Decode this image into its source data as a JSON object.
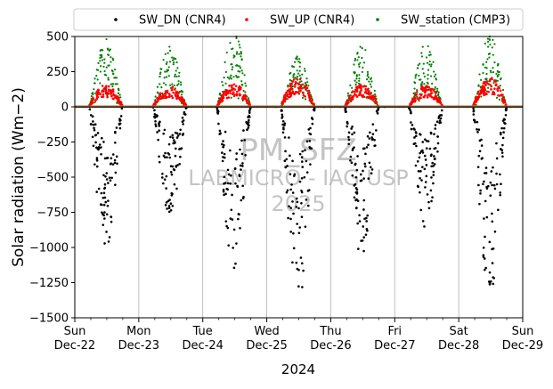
{
  "chart_data": {
    "type": "scatter",
    "xlabel": "2024",
    "ylabel": "Solar radiation (Wm−2)",
    "ylim": [
      -1500,
      500
    ],
    "yticks": [
      -1500,
      -1250,
      -1000,
      -750,
      -500,
      -250,
      0,
      250,
      500
    ],
    "xlim": [
      "2024-12-22",
      "2024-12-29"
    ],
    "xtick_labels": [
      {
        "day": "Sun",
        "date": "Dec-22"
      },
      {
        "day": "Mon",
        "date": "Dec-23"
      },
      {
        "day": "Tue",
        "date": "Dec-24"
      },
      {
        "day": "Wed",
        "date": "Dec-25"
      },
      {
        "day": "Thu",
        "date": "Dec-26"
      },
      {
        "day": "Fri",
        "date": "Dec-27"
      },
      {
        "day": "Sat",
        "date": "Dec-28"
      },
      {
        "day": "Sun",
        "date": "Dec-29"
      }
    ],
    "grid": "vertical",
    "legend_position": "top",
    "series": [
      {
        "name": "SW_DN (CNR4)",
        "color": "#000000",
        "daily_peak": [
          -910,
          -710,
          -1050,
          -1310,
          -980,
          -800,
          -1220
        ]
      },
      {
        "name": "SW_UP (CNR4)",
        "color": "#ff0000",
        "daily_peak": [
          150,
          140,
          160,
          200,
          160,
          150,
          200
        ]
      },
      {
        "name": "SW_station (CMP3)",
        "color": "#008000",
        "daily_peak": [
          440,
          420,
          490,
          330,
          410,
          410,
          490
        ]
      }
    ],
    "watermark": [
      "PM_SFZ",
      "LABMICRO - IAG USP",
      "2025"
    ]
  }
}
